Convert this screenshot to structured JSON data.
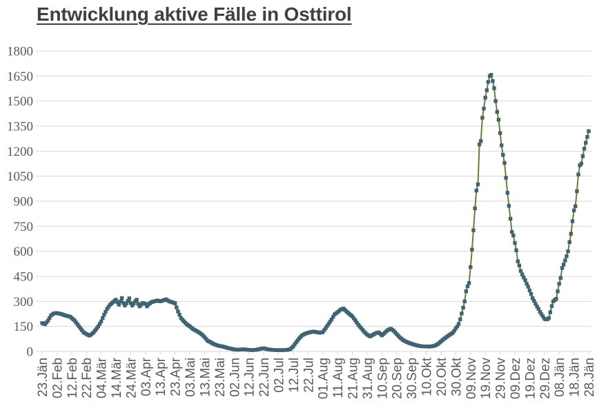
{
  "chart_data": {
    "type": "line",
    "title": "Entwicklung aktive Fälle in Osttirol",
    "legend": "none",
    "grid": "horizontal",
    "y_axis": {
      "min": 0,
      "max": 1800,
      "ticks": [
        0,
        150,
        300,
        450,
        600,
        750,
        900,
        1050,
        1200,
        1350,
        1500,
        1650,
        1800
      ]
    },
    "x_axis": {
      "tick_interval_days": 10,
      "tick_labels": [
        "23.Jän",
        "02.Feb",
        "12.Feb",
        "22.Feb",
        "04.Mär",
        "14.Mär",
        "24.Mär",
        "03.Apr",
        "13.Apr",
        "23.Apr",
        "03.Mai",
        "13.Mai",
        "23.Mai",
        "02.Jun",
        "12.Jun",
        "22.Jun",
        "02.Jul",
        "12.Jul",
        "22.Jul",
        "01.Aug",
        "11.Aug",
        "21.Aug",
        "31.Aug",
        "10.Sep",
        "20.Sep",
        "30.Sep",
        "10.Okt",
        "20.Okt",
        "30.Okt",
        "09.Nov",
        "19.Nov",
        "29.Nov",
        "09.Dez",
        "19.Dez",
        "29.Dez",
        "08.Jän",
        "18.Jän",
        "28.Jän"
      ]
    },
    "series": [
      {
        "marker": "square",
        "first_day_label": "23.Jän",
        "last_day_label": "28.Jän",
        "keypoints": [
          [
            0,
            170
          ],
          [
            2,
            163
          ],
          [
            4,
            185
          ],
          [
            6,
            215
          ],
          [
            8,
            228
          ],
          [
            10,
            230
          ],
          [
            13,
            224
          ],
          [
            16,
            215
          ],
          [
            19,
            208
          ],
          [
            22,
            185
          ],
          [
            25,
            150
          ],
          [
            28,
            115
          ],
          [
            30,
            104
          ],
          [
            32,
            95
          ],
          [
            33,
            100
          ],
          [
            35,
            115
          ],
          [
            38,
            150
          ],
          [
            40,
            180
          ],
          [
            42,
            220
          ],
          [
            44,
            255
          ],
          [
            46,
            280
          ],
          [
            48,
            295
          ],
          [
            50,
            310
          ],
          [
            51,
            294
          ],
          [
            52,
            280
          ],
          [
            53,
            300
          ],
          [
            54,
            320
          ],
          [
            55,
            290
          ],
          [
            56,
            275
          ],
          [
            57,
            286
          ],
          [
            58,
            302
          ],
          [
            59,
            318
          ],
          [
            60,
            290
          ],
          [
            61,
            275
          ],
          [
            62,
            286
          ],
          [
            63,
            300
          ],
          [
            64,
            310
          ],
          [
            65,
            285
          ],
          [
            66,
            270
          ],
          [
            67,
            280
          ],
          [
            68,
            290
          ],
          [
            70,
            285
          ],
          [
            71,
            270
          ],
          [
            72,
            282
          ],
          [
            74,
            295
          ],
          [
            76,
            300
          ],
          [
            78,
            305
          ],
          [
            80,
            300
          ],
          [
            82,
            306
          ],
          [
            84,
            312
          ],
          [
            86,
            300
          ],
          [
            88,
            295
          ],
          [
            90,
            288
          ],
          [
            92,
            240
          ],
          [
            94,
            200
          ],
          [
            96,
            180
          ],
          [
            98,
            162
          ],
          [
            100,
            150
          ],
          [
            102,
            135
          ],
          [
            104,
            125
          ],
          [
            106,
            115
          ],
          [
            108,
            103
          ],
          [
            110,
            85
          ],
          [
            112,
            65
          ],
          [
            114,
            55
          ],
          [
            116,
            45
          ],
          [
            118,
            38
          ],
          [
            120,
            33
          ],
          [
            122,
            30
          ],
          [
            124,
            25
          ],
          [
            126,
            20
          ],
          [
            128,
            16
          ],
          [
            130,
            12
          ],
          [
            133,
            10
          ],
          [
            136,
            13
          ],
          [
            139,
            10
          ],
          [
            142,
            8
          ],
          [
            145,
            10
          ],
          [
            148,
            16
          ],
          [
            150,
            19
          ],
          [
            152,
            14
          ],
          [
            155,
            10
          ],
          [
            158,
            8
          ],
          [
            162,
            8
          ],
          [
            166,
            9
          ],
          [
            168,
            14
          ],
          [
            170,
            30
          ],
          [
            172,
            55
          ],
          [
            174,
            78
          ],
          [
            176,
            96
          ],
          [
            178,
            106
          ],
          [
            180,
            112
          ],
          [
            182,
            116
          ],
          [
            184,
            119
          ],
          [
            186,
            115
          ],
          [
            188,
            112
          ],
          [
            190,
            116
          ],
          [
            192,
            140
          ],
          [
            194,
            166
          ],
          [
            196,
            192
          ],
          [
            198,
            222
          ],
          [
            200,
            235
          ],
          [
            202,
            250
          ],
          [
            204,
            257
          ],
          [
            206,
            240
          ],
          [
            208,
            224
          ],
          [
            210,
            210
          ],
          [
            212,
            186
          ],
          [
            214,
            160
          ],
          [
            216,
            139
          ],
          [
            218,
            118
          ],
          [
            220,
            101
          ],
          [
            222,
            90
          ],
          [
            224,
            100
          ],
          [
            226,
            110
          ],
          [
            228,
            114
          ],
          [
            230,
            96
          ],
          [
            232,
            112
          ],
          [
            234,
            128
          ],
          [
            236,
            136
          ],
          [
            238,
            124
          ],
          [
            240,
            104
          ],
          [
            242,
            85
          ],
          [
            244,
            70
          ],
          [
            246,
            60
          ],
          [
            248,
            52
          ],
          [
            250,
            46
          ],
          [
            252,
            40
          ],
          [
            254,
            36
          ],
          [
            256,
            32
          ],
          [
            258,
            30
          ],
          [
            260,
            30
          ],
          [
            262,
            29
          ],
          [
            264,
            31
          ],
          [
            266,
            35
          ],
          [
            268,
            45
          ],
          [
            270,
            60
          ],
          [
            272,
            75
          ],
          [
            274,
            88
          ],
          [
            276,
            100
          ],
          [
            278,
            112
          ],
          [
            279,
            124
          ],
          [
            280,
            138
          ],
          [
            281,
            150
          ],
          [
            282,
            165
          ],
          [
            283,
            193
          ],
          [
            284,
            227
          ],
          [
            285,
            262
          ],
          [
            286,
            300
          ],
          [
            287,
            360
          ],
          [
            288,
            390
          ],
          [
            289,
            410
          ],
          [
            290,
            505
          ],
          [
            291,
            610
          ],
          [
            292,
            726
          ],
          [
            293,
            857
          ],
          [
            294,
            964
          ],
          [
            295,
            1001
          ],
          [
            296,
            1240
          ],
          [
            297,
            1260
          ],
          [
            298,
            1400
          ],
          [
            299,
            1455
          ],
          [
            300,
            1520
          ],
          [
            301,
            1565
          ],
          [
            302,
            1615
          ],
          [
            303,
            1650
          ],
          [
            304,
            1657
          ],
          [
            305,
            1620
          ],
          [
            306,
            1577
          ],
          [
            307,
            1500
          ],
          [
            308,
            1435
          ],
          [
            309,
            1388
          ],
          [
            310,
            1308
          ],
          [
            311,
            1235
          ],
          [
            312,
            1178
          ],
          [
            313,
            1129
          ],
          [
            314,
            1040
          ],
          [
            315,
            950
          ],
          [
            316,
            872
          ],
          [
            317,
            795
          ],
          [
            318,
            716
          ],
          [
            319,
            695
          ],
          [
            320,
            650
          ],
          [
            321,
            606
          ],
          [
            322,
            540
          ],
          [
            323,
            515
          ],
          [
            324,
            482
          ],
          [
            325,
            461
          ],
          [
            326,
            443
          ],
          [
            327,
            427
          ],
          [
            328,
            406
          ],
          [
            329,
            388
          ],
          [
            330,
            365
          ],
          [
            331,
            344
          ],
          [
            332,
            319
          ],
          [
            333,
            303
          ],
          [
            334,
            285
          ],
          [
            335,
            269
          ],
          [
            336,
            255
          ],
          [
            337,
            237
          ],
          [
            338,
            223
          ],
          [
            339,
            210
          ],
          [
            340,
            196
          ],
          [
            341,
            192
          ],
          [
            342,
            193
          ],
          [
            343,
            200
          ],
          [
            344,
            235
          ],
          [
            345,
            272
          ],
          [
            346,
            300
          ],
          [
            347,
            308
          ],
          [
            348,
            315
          ],
          [
            349,
            360
          ],
          [
            350,
            405
          ],
          [
            351,
            440
          ],
          [
            352,
            500
          ],
          [
            353,
            520
          ],
          [
            354,
            545
          ],
          [
            355,
            570
          ],
          [
            356,
            600
          ],
          [
            357,
            655
          ],
          [
            358,
            705
          ],
          [
            359,
            780
          ],
          [
            360,
            845
          ],
          [
            361,
            870
          ],
          [
            362,
            960
          ],
          [
            363,
            1060
          ],
          [
            364,
            1115
          ],
          [
            365,
            1125
          ],
          [
            366,
            1170
          ],
          [
            367,
            1215
          ],
          [
            368,
            1250
          ],
          [
            369,
            1285
          ],
          [
            370,
            1320
          ]
        ]
      }
    ],
    "colors": {
      "line": "#6c7d33",
      "marker": "#3f6370",
      "grid": "#d6d6d6",
      "axis_text": "#595959",
      "title_text": "#404040"
    }
  }
}
